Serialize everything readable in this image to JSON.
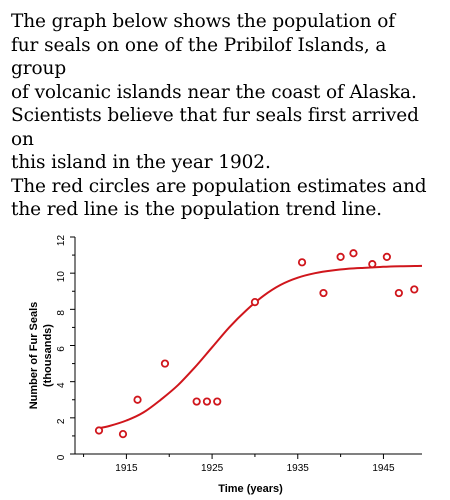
{
  "text": {
    "lines_p1": [
      "The graph below shows the population of",
      "fur seals on one of the Pribilof Islands, a group",
      "of volcanic islands near the coast of Alaska.",
      "Scientists believe that fur seals first arrived on",
      "this island in the year 1902."
    ],
    "lines_p2": [
      "The red circles are population estimates and",
      "the red line is the population trend line."
    ]
  },
  "colors": {
    "series": "#d0161c",
    "axis": "#000000"
  },
  "chart_data": {
    "type": "scatter",
    "title": "",
    "xlabel": "Time (years)",
    "ylabel_lines": [
      "Number of Fur Seals",
      "(thousands)"
    ],
    "xlim": [
      1909,
      1949.5
    ],
    "ylim": [
      0,
      12
    ],
    "x_ticks": [
      1915,
      1925,
      1935,
      1945
    ],
    "x_ticklabels": [
      "1915",
      "1925",
      "1935",
      "1945"
    ],
    "y_ticks": [
      0,
      2,
      4,
      6,
      8,
      10,
      12
    ],
    "y_ticklabels": [
      "0",
      "2",
      "4",
      "6",
      "8",
      "10",
      "12"
    ],
    "series": [
      {
        "kind": "points",
        "x": [
          1911.8,
          1914.6,
          1916.3,
          1919.5,
          1923.2,
          1924.4,
          1925.6,
          1930.0,
          1935.5,
          1938.0,
          1940.0,
          1941.5,
          1943.7,
          1945.4,
          1946.8,
          1948.6
        ],
        "y": [
          1.3,
          1.1,
          3.0,
          5.0,
          2.9,
          2.9,
          2.9,
          8.4,
          10.6,
          8.9,
          10.9,
          11.1,
          10.5,
          10.9,
          8.9,
          9.1
        ]
      },
      {
        "kind": "trend_line",
        "x": [
          1911.5,
          1913,
          1915,
          1917,
          1919,
          1921,
          1923,
          1925,
          1927,
          1929,
          1931,
          1933,
          1935,
          1937,
          1939,
          1941,
          1943,
          1945,
          1947,
          1949.5
        ],
        "y": [
          1.4,
          1.55,
          1.85,
          2.3,
          3.0,
          3.8,
          4.8,
          5.9,
          7.0,
          7.95,
          8.75,
          9.35,
          9.75,
          10.0,
          10.15,
          10.25,
          10.3,
          10.35,
          10.38,
          10.4
        ]
      }
    ]
  }
}
